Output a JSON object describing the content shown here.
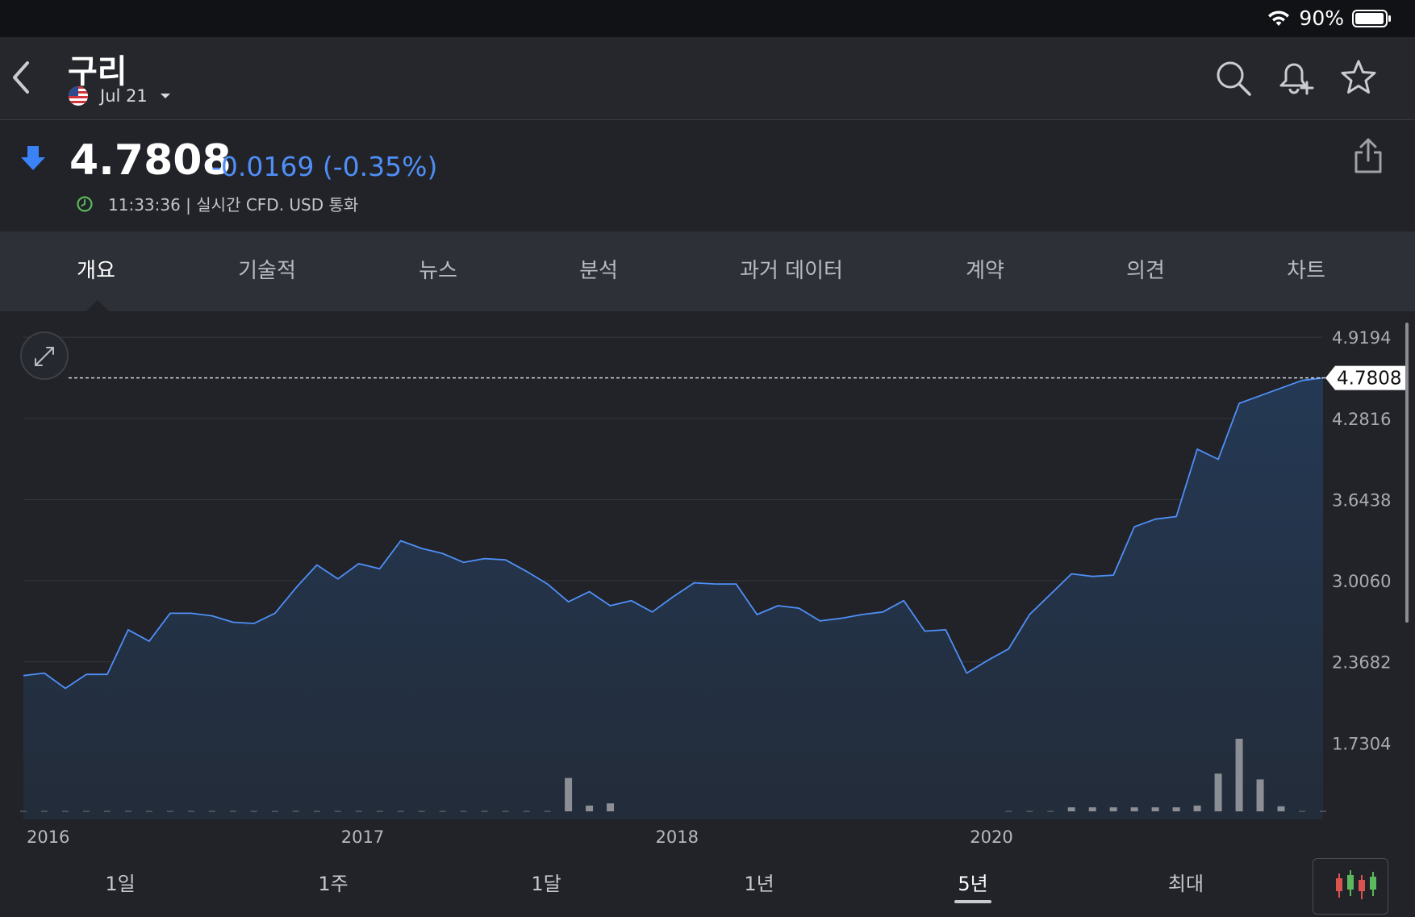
{
  "status_bar": {
    "battery_text": "90%",
    "icons": [
      "wifi-icon",
      "battery-icon"
    ]
  },
  "header": {
    "title": "구리",
    "contract": "Jul 21",
    "flag": "us-flag-icon",
    "icons": [
      "back-icon",
      "search-icon",
      "bell-plus-icon",
      "star-icon"
    ]
  },
  "quote": {
    "price": "4.7808",
    "change": "-0.0169 (-0.35%)",
    "timestamp": "11:33:36 | 실시간 CFD. USD 통화",
    "direction_icon": "arrow-down-icon",
    "change_color": "#4f8ff7",
    "up_color": "#5cb85c"
  },
  "tabs": [
    {
      "label": "개요",
      "active": true
    },
    {
      "label": "기술적",
      "active": false
    },
    {
      "label": "뉴스",
      "active": false
    },
    {
      "label": "분석",
      "active": false
    },
    {
      "label": "과거 데이터",
      "active": false
    },
    {
      "label": "계약",
      "active": false
    },
    {
      "label": "의견",
      "active": false
    },
    {
      "label": "차트",
      "active": false
    }
  ],
  "chart_data": {
    "type": "area",
    "y_ticks": [
      "4.9194",
      "4.2816",
      "3.6438",
      "3.0060",
      "2.3682",
      "1.7304"
    ],
    "y_tick_values": [
      4.9194,
      4.2816,
      3.6438,
      3.006,
      2.3682,
      1.7304
    ],
    "x_tick_labels": [
      "2016",
      "2017",
      "2018",
      "2020"
    ],
    "x_tick_index": [
      1,
      16,
      31,
      46
    ],
    "current_label": "4.7808",
    "ylim": [
      1.13,
      5.06
    ],
    "grid": true,
    "line_color": "#4f8ff7",
    "values": [
      2.26,
      2.28,
      2.16,
      2.27,
      2.27,
      2.62,
      2.53,
      2.75,
      2.75,
      2.73,
      2.68,
      2.67,
      2.75,
      2.95,
      3.13,
      3.02,
      3.14,
      3.1,
      3.32,
      3.26,
      3.22,
      3.15,
      3.18,
      3.17,
      3.08,
      2.98,
      2.84,
      2.92,
      2.81,
      2.85,
      2.76,
      2.88,
      2.99,
      2.98,
      2.98,
      2.74,
      2.81,
      2.79,
      2.69,
      2.71,
      2.74,
      2.76,
      2.85,
      2.61,
      2.62,
      2.28,
      2.38,
      2.47,
      2.74,
      2.9,
      3.06,
      3.04,
      3.05,
      3.43,
      3.49,
      3.51,
      4.04,
      3.96,
      4.4,
      4.46,
      4.52,
      4.58,
      4.6
    ],
    "volume": [
      0,
      0,
      0,
      0,
      0,
      0,
      0,
      0,
      0,
      0,
      0,
      0,
      0,
      0,
      0,
      0,
      0,
      0,
      0,
      0,
      0,
      0,
      0,
      0,
      0,
      0,
      46,
      8,
      11,
      0,
      0,
      0,
      0,
      0,
      0,
      0,
      0,
      0,
      0,
      0,
      0,
      0,
      0,
      0,
      0,
      0,
      0,
      0,
      0,
      0,
      1,
      2,
      3,
      3,
      4,
      4,
      8,
      52,
      100,
      44,
      7,
      0,
      0
    ]
  },
  "ranges": [
    {
      "label": "1일",
      "active": false
    },
    {
      "label": "1주",
      "active": false
    },
    {
      "label": "1달",
      "active": false
    },
    {
      "label": "1년",
      "active": false
    },
    {
      "label": "5년",
      "active": true
    },
    {
      "label": "최대",
      "active": false
    }
  ]
}
